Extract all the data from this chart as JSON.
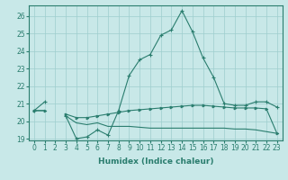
{
  "xlabel": "Humidex (Indice chaleur)",
  "x": [
    0,
    1,
    2,
    3,
    4,
    5,
    6,
    7,
    8,
    9,
    10,
    11,
    12,
    13,
    14,
    15,
    16,
    17,
    18,
    19,
    20,
    21,
    22,
    23
  ],
  "line1": [
    20.6,
    21.1,
    null,
    20.3,
    19.0,
    19.1,
    19.5,
    19.2,
    20.6,
    22.6,
    23.5,
    23.8,
    24.9,
    25.2,
    26.3,
    25.1,
    23.6,
    22.5,
    21.0,
    20.9,
    20.9,
    21.1,
    21.1,
    20.8
  ],
  "line2": [
    20.6,
    20.6,
    null,
    20.4,
    20.2,
    20.2,
    20.3,
    20.4,
    20.5,
    20.6,
    20.65,
    20.7,
    20.75,
    20.8,
    20.85,
    20.9,
    20.9,
    20.85,
    20.8,
    20.75,
    20.75,
    20.75,
    20.7,
    19.3
  ],
  "line3": [
    20.6,
    20.6,
    null,
    20.3,
    19.9,
    19.8,
    19.9,
    19.7,
    19.7,
    19.7,
    19.65,
    19.6,
    19.6,
    19.6,
    19.6,
    19.6,
    19.6,
    19.6,
    19.6,
    19.55,
    19.55,
    19.5,
    19.4,
    19.3
  ],
  "color": "#2a7d6e",
  "bg_color": "#c8e8e8",
  "grid_color": "#9ecece",
  "ylim": [
    18.9,
    26.6
  ],
  "yticks": [
    19,
    20,
    21,
    22,
    23,
    24,
    25,
    26
  ],
  "xticks": [
    0,
    1,
    2,
    3,
    4,
    5,
    6,
    7,
    8,
    9,
    10,
    11,
    12,
    13,
    14,
    15,
    16,
    17,
    18,
    19,
    20,
    21,
    22,
    23
  ],
  "tick_fontsize": 5.5,
  "label_fontsize": 6.5
}
